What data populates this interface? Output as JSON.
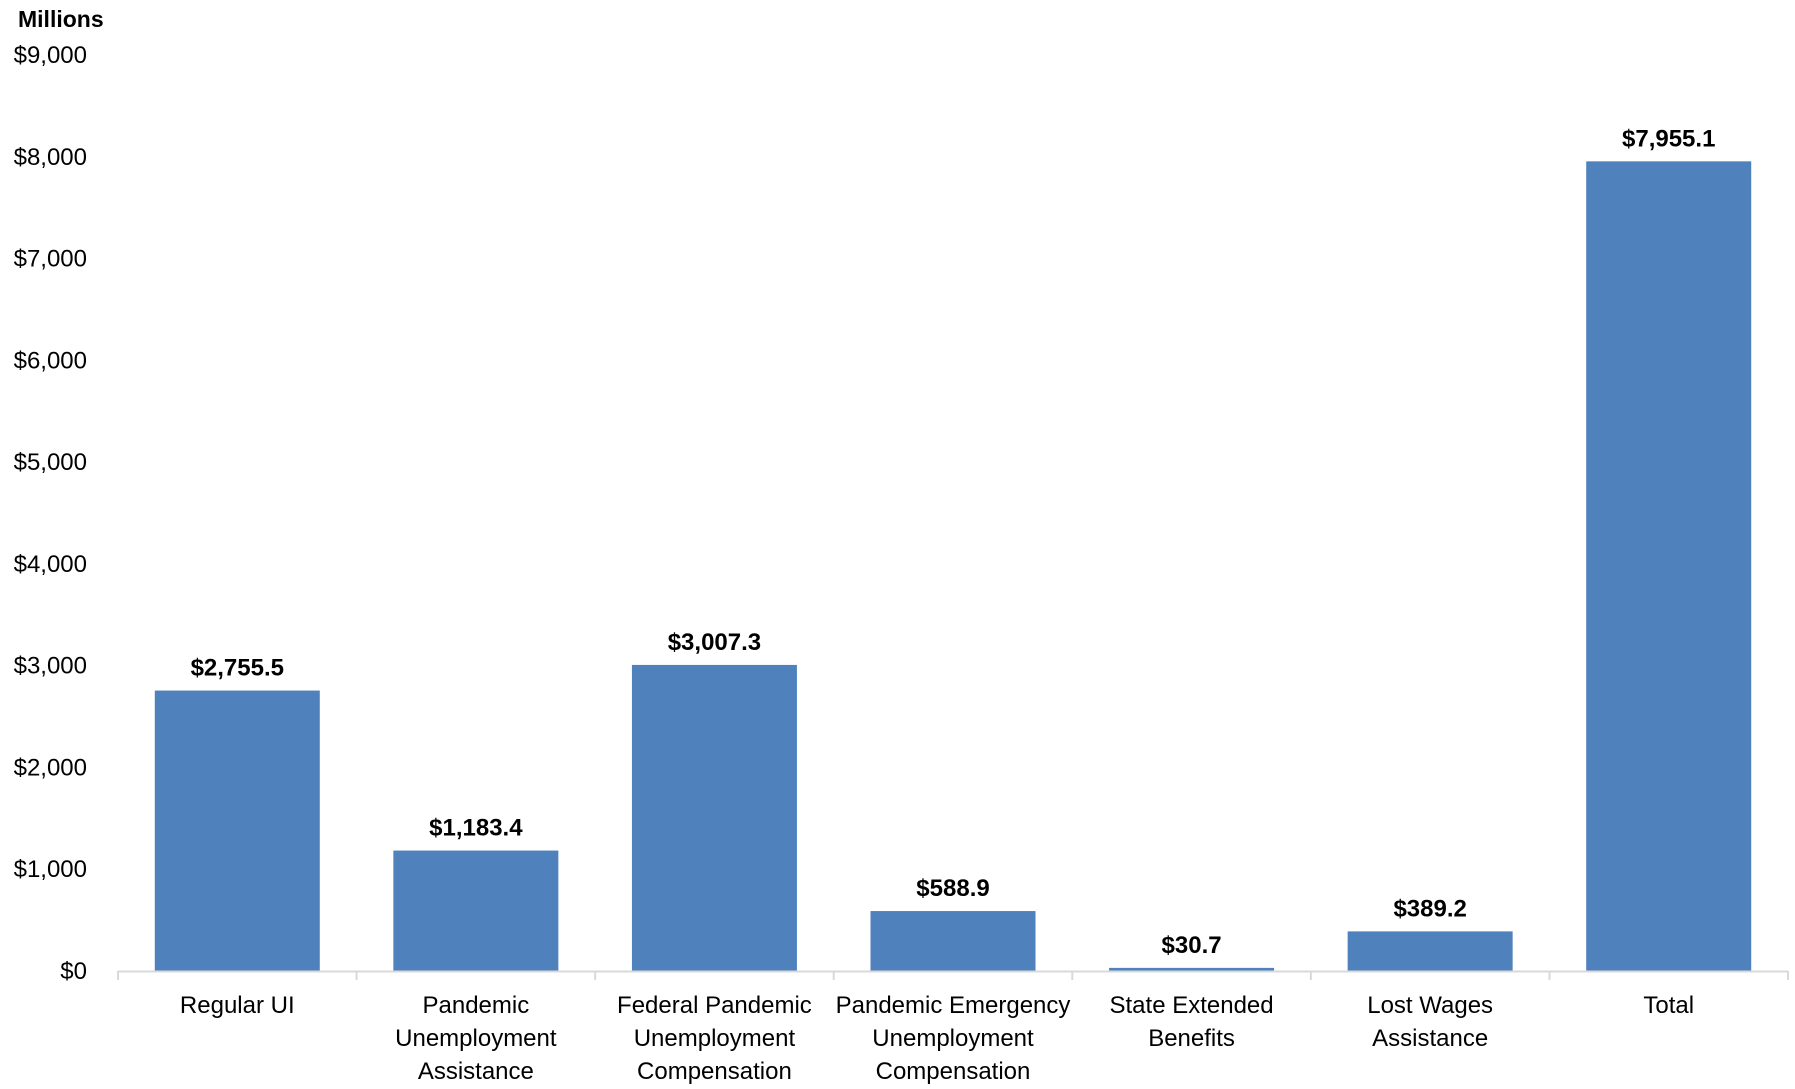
{
  "chart_data": {
    "type": "bar",
    "title": "",
    "xlabel": "",
    "ylabel": "Millions",
    "categories": [
      [
        "Regular UI"
      ],
      [
        "Pandemic",
        "Unemployment",
        "Assistance"
      ],
      [
        "Federal Pandemic",
        "Unemployment",
        "Compensation"
      ],
      [
        "Pandemic Emergency",
        "Unemployment",
        "Compensation"
      ],
      [
        "State Extended",
        "Benefits"
      ],
      [
        "Lost Wages",
        "Assistance"
      ],
      [
        "Total"
      ]
    ],
    "values": [
      2755.5,
      1183.4,
      3007.3,
      588.9,
      30.7,
      389.2,
      7955.1
    ],
    "data_labels": [
      "$2,755.5",
      "$1,183.4",
      "$3,007.3",
      "$588.9",
      "$30.7",
      "$389.2",
      "$7,955.1"
    ],
    "ylim": [
      0,
      9000
    ],
    "yticks": [
      0,
      1000,
      2000,
      3000,
      4000,
      5000,
      6000,
      7000,
      8000,
      9000
    ],
    "ytick_labels": [
      "$0",
      "$1,000",
      "$2,000",
      "$3,000",
      "$4,000",
      "$5,000",
      "$6,000",
      "$7,000",
      "$8,000",
      "$9,000"
    ],
    "grid": false,
    "legend": "none",
    "colors": {
      "bar": "#4f81bd",
      "axis": "#d9d9d9",
      "text": "#000000"
    }
  }
}
